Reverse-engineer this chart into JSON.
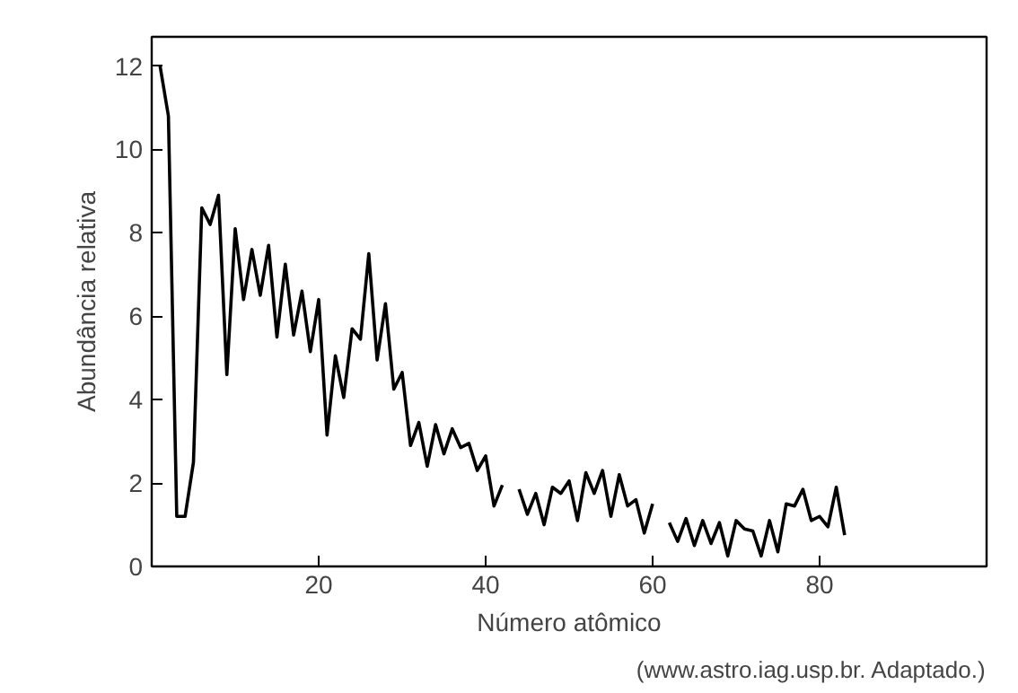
{
  "chart_data": {
    "type": "line",
    "xlabel": "Número atômico",
    "ylabel": "Abundância relativa",
    "annotations": [
      "(www.astro.iag.usp.br. Adaptado.)"
    ],
    "x": [
      1,
      2,
      3,
      4,
      5,
      6,
      7,
      8,
      9,
      10,
      11,
      12,
      13,
      14,
      15,
      16,
      17,
      18,
      19,
      20,
      21,
      22,
      23,
      24,
      25,
      26,
      27,
      28,
      29,
      30,
      31,
      32,
      33,
      34,
      35,
      36,
      37,
      38,
      39,
      40,
      41,
      42,
      43,
      44,
      45,
      46,
      47,
      48,
      49,
      50,
      51,
      52,
      53,
      54,
      55,
      56,
      57,
      58,
      59,
      60,
      61,
      62,
      63,
      64,
      65,
      66,
      67,
      68,
      69,
      70,
      71,
      72,
      73,
      74,
      75,
      76,
      77,
      78,
      79,
      80,
      81,
      82,
      83
    ],
    "series": [
      {
        "color": "#000000",
        "values": [
          12.0,
          10.8,
          1.2,
          1.2,
          2.5,
          8.6,
          8.2,
          8.9,
          4.6,
          8.1,
          6.4,
          7.6,
          6.5,
          7.7,
          5.5,
          7.25,
          5.55,
          6.6,
          5.15,
          6.4,
          3.15,
          5.05,
          4.05,
          5.7,
          5.45,
          7.5,
          4.95,
          6.3,
          4.25,
          4.65,
          2.9,
          3.45,
          2.4,
          3.4,
          2.7,
          3.3,
          2.85,
          2.95,
          2.3,
          2.65,
          1.45,
          1.95,
          null,
          1.85,
          1.25,
          1.75,
          1.0,
          1.9,
          1.75,
          2.05,
          1.1,
          2.25,
          1.75,
          2.3,
          1.2,
          2.2,
          1.45,
          1.6,
          0.8,
          1.5,
          null,
          1.05,
          0.6,
          1.15,
          0.5,
          1.1,
          0.55,
          1.05,
          0.25,
          1.1,
          0.9,
          0.85,
          0.25,
          1.1,
          0.35,
          1.5,
          1.45,
          1.85,
          1.1,
          1.2,
          0.95,
          1.9,
          0.75
        ]
      }
    ],
    "xlim": [
      0,
      100
    ],
    "ylim": [
      0,
      12.7
    ],
    "xticks": [
      20,
      40,
      60,
      80
    ],
    "yticks": [
      0,
      2,
      4,
      6,
      8,
      10,
      12
    ],
    "grid": false,
    "marker": "none",
    "line_style": "solid"
  }
}
